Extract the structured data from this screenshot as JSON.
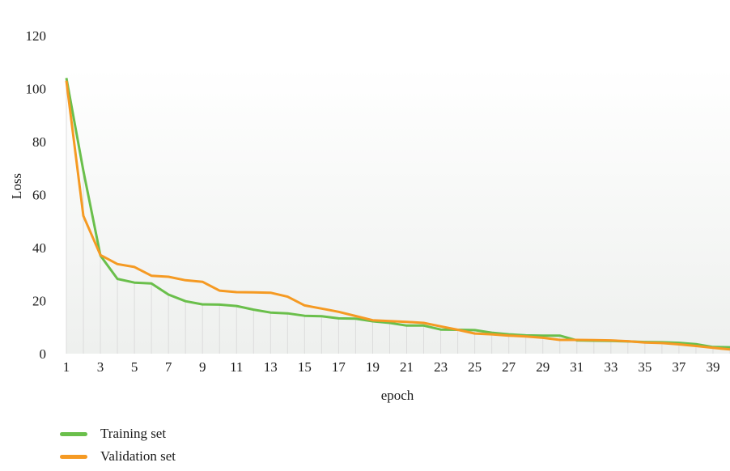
{
  "chart_data": {
    "type": "line",
    "title": "",
    "xlabel": "epoch",
    "ylabel": "Loss",
    "ylim": [
      0,
      120
    ],
    "yticks": [
      0,
      20,
      40,
      60,
      80,
      100,
      120
    ],
    "xlim": [
      1,
      40
    ],
    "xticks": [
      1,
      3,
      5,
      7,
      9,
      11,
      13,
      15,
      17,
      19,
      21,
      23,
      25,
      27,
      29,
      31,
      33,
      35,
      37,
      39
    ],
    "x": [
      1,
      2,
      3,
      4,
      5,
      6,
      7,
      8,
      9,
      10,
      11,
      12,
      13,
      14,
      15,
      16,
      17,
      18,
      19,
      20,
      21,
      22,
      23,
      24,
      25,
      26,
      27,
      28,
      29,
      30,
      31,
      32,
      33,
      34,
      35,
      36,
      37,
      38,
      39,
      40
    ],
    "grid": "vertical lines at every epoch",
    "legend_position": "bottom-left",
    "series": [
      {
        "name": "Training set",
        "color": "#6abf4b",
        "values": [
          104,
          69,
          37,
          28.2,
          26.8,
          26.5,
          22.3,
          19.8,
          18.6,
          18.5,
          18,
          16.6,
          15.5,
          15.2,
          14.3,
          14.1,
          13.3,
          13.2,
          12.2,
          11.6,
          10.6,
          10.6,
          9.1,
          9,
          8.9,
          7.9,
          7.3,
          6.9,
          6.8,
          6.8,
          5,
          4.9,
          4.8,
          4.6,
          4.4,
          4.3,
          4.1,
          3.6,
          2.5,
          2.4
        ]
      },
      {
        "name": "Validation set",
        "color": "#f59a23",
        "values": [
          103,
          52,
          37.2,
          33.8,
          32.7,
          29.4,
          29,
          27.7,
          27.1,
          23.8,
          23.2,
          23.1,
          23,
          21.5,
          18.2,
          17,
          15.8,
          14.2,
          12.6,
          12.3,
          12,
          11.6,
          10.3,
          9,
          7.6,
          7.3,
          6.8,
          6.5,
          6,
          5.2,
          5.2,
          5.1,
          5,
          4.7,
          4.2,
          4,
          3.5,
          2.9,
          2.2,
          1.6
        ]
      }
    ]
  }
}
